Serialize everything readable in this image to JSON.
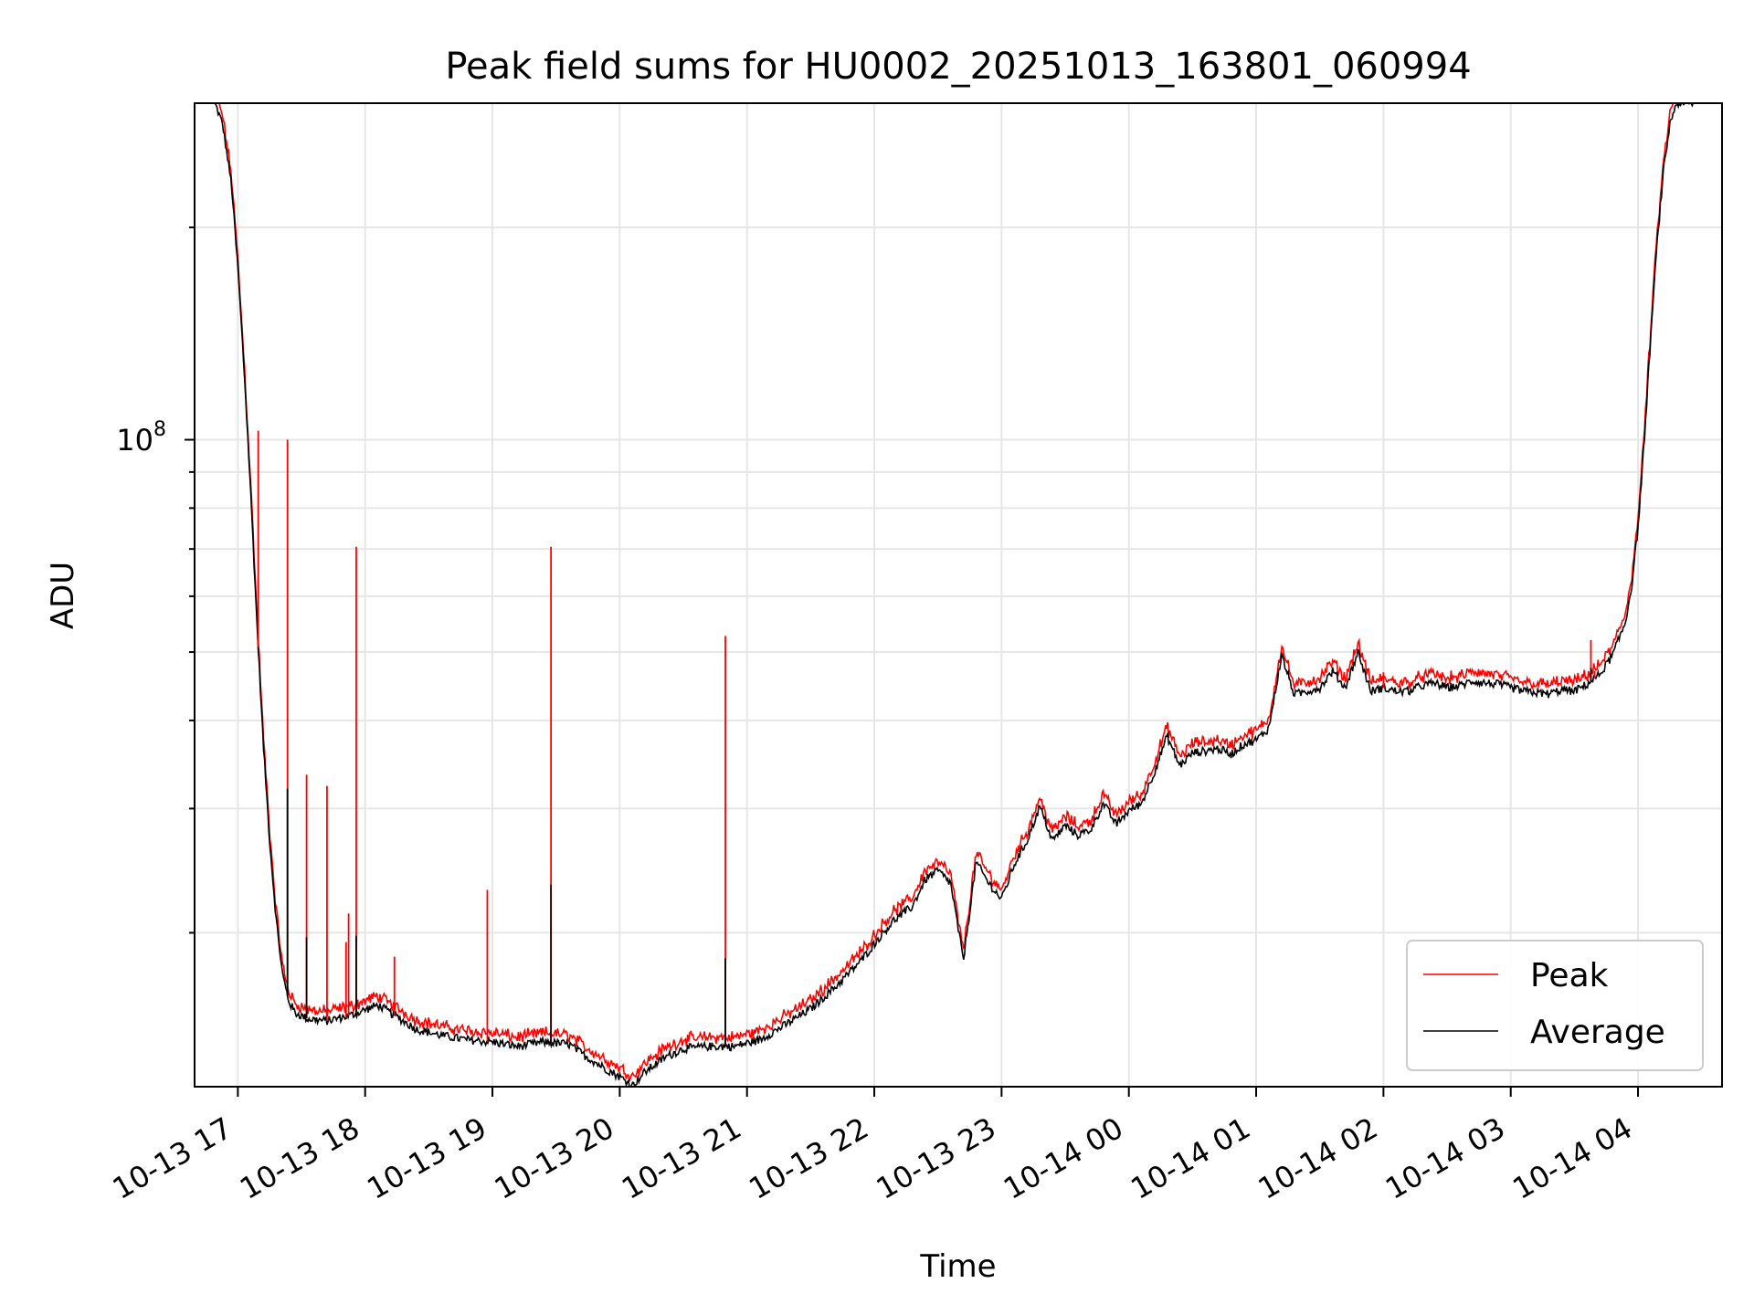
{
  "chart_data": {
    "type": "line",
    "title": "Peak field sums for HU0002_20251013_163801_060994",
    "xlabel": "Time",
    "ylabel": "ADU",
    "yscale": "log",
    "ylim": [
      12100000,
      300000000
    ],
    "xlim_hours": [
      16.66,
      28.66
    ],
    "x_ticks": [
      {
        "h": 17,
        "label": "10-13 17"
      },
      {
        "h": 18,
        "label": "10-13 18"
      },
      {
        "h": 19,
        "label": "10-13 19"
      },
      {
        "h": 20,
        "label": "10-13 20"
      },
      {
        "h": 21,
        "label": "10-13 21"
      },
      {
        "h": 22,
        "label": "10-13 22"
      },
      {
        "h": 23,
        "label": "10-13 23"
      },
      {
        "h": 24,
        "label": "10-14 00"
      },
      {
        "h": 25,
        "label": "10-14 01"
      },
      {
        "h": 26,
        "label": "10-14 02"
      },
      {
        "h": 27,
        "label": "10-14 03"
      },
      {
        "h": 28,
        "label": "10-14 04"
      }
    ],
    "y_major_tick": {
      "value": 100000000,
      "label": "10",
      "exp": "8"
    },
    "y_minor_ticks": [
      20000000,
      30000000,
      40000000,
      50000000,
      60000000,
      70000000,
      80000000,
      90000000,
      200000000
    ],
    "grid": true,
    "legend_position": "lower-right",
    "series": [
      {
        "name": "Average",
        "color": "#000000",
        "hours": [
          16.82,
          16.88,
          16.95,
          17.0,
          17.05,
          17.1,
          17.15,
          17.2,
          17.25,
          17.3,
          17.35,
          17.4,
          17.45,
          17.55,
          17.7,
          17.9,
          18.1,
          18.25,
          18.4,
          18.6,
          18.8,
          19.0,
          19.2,
          19.4,
          19.6,
          19.75,
          19.9,
          20.0,
          20.1,
          20.2,
          20.35,
          20.5,
          20.7,
          20.9,
          21.1,
          21.3,
          21.5,
          21.7,
          21.9,
          22.05,
          22.15,
          22.3,
          22.4,
          22.5,
          22.6,
          22.7,
          22.8,
          22.9,
          23.0,
          23.1,
          23.2,
          23.3,
          23.4,
          23.5,
          23.6,
          23.7,
          23.8,
          23.9,
          24.0,
          24.1,
          24.2,
          24.3,
          24.4,
          24.5,
          24.6,
          24.7,
          24.8,
          24.9,
          25.0,
          25.1,
          25.2,
          25.3,
          25.4,
          25.5,
          25.6,
          25.7,
          25.8,
          25.9,
          26.0,
          26.1,
          26.2,
          26.3,
          26.4,
          26.5,
          26.6,
          26.7,
          26.8,
          26.9,
          27.0,
          27.1,
          27.2,
          27.3,
          27.4,
          27.5,
          27.6,
          27.7,
          27.8,
          27.9,
          27.95,
          28.0,
          28.05,
          28.1,
          28.15,
          28.2,
          28.25,
          28.3,
          28.35,
          28.4,
          28.45
        ],
        "values": [
          300000000,
          280000000,
          230000000,
          175000000,
          125000000,
          85000000,
          55000000,
          37000000,
          27000000,
          21000000,
          17500000,
          16000000,
          15400000,
          15100000,
          15000000,
          15300000,
          15800000,
          15200000,
          14600000,
          14300000,
          14100000,
          14000000,
          13800000,
          14000000,
          13900000,
          13300000,
          12800000,
          12500000,
          12150000,
          12700000,
          13300000,
          13700000,
          13800000,
          13800000,
          14100000,
          14800000,
          15600000,
          16800000,
          18300000,
          19800000,
          20800000,
          21800000,
          23800000,
          24500000,
          23500000,
          18300000,
          25200000,
          23500000,
          22300000,
          25000000,
          27000000,
          30200000,
          27000000,
          28400000,
          27500000,
          28000000,
          30500000,
          28500000,
          29800000,
          30500000,
          33800000,
          38000000,
          34500000,
          36000000,
          36200000,
          36500000,
          35800000,
          37000000,
          37500000,
          39000000,
          49500000,
          43500000,
          44000000,
          44500000,
          47000000,
          44500000,
          50000000,
          44000000,
          44500000,
          44000000,
          44000000,
          44800000,
          45200000,
          44500000,
          44800000,
          45500000,
          45200000,
          45000000,
          44500000,
          44000000,
          43800000,
          43600000,
          44200000,
          44000000,
          45000000,
          46500000,
          49500000,
          55000000,
          62000000,
          75000000,
          100000000,
          140000000,
          190000000,
          240000000,
          280000000,
          300000000,
          300000000,
          300000000,
          300000000
        ]
      },
      {
        "name": "Peak",
        "color": "#ff0000",
        "spikes": [
          {
            "h": 17.16,
            "value": 103000000
          },
          {
            "h": 17.39,
            "value": 100000000
          },
          {
            "h": 17.54,
            "value": 33500000
          },
          {
            "h": 17.7,
            "value": 32300000
          },
          {
            "h": 17.85,
            "value": 19400000
          },
          {
            "h": 17.87,
            "value": 21300000
          },
          {
            "h": 17.93,
            "value": 70500000
          },
          {
            "h": 18.23,
            "value": 18500000
          },
          {
            "h": 18.96,
            "value": 23000000
          },
          {
            "h": 19.46,
            "value": 70500000
          },
          {
            "h": 20.83,
            "value": 52700000
          },
          {
            "h": 26.0,
            "value": 46800000
          },
          {
            "h": 27.63,
            "value": 52000000
          },
          {
            "h": 27.66,
            "value": 47000000
          }
        ]
      }
    ],
    "average_spikes": [
      {
        "h": 17.39,
        "value": 32000000
      },
      {
        "h": 17.54,
        "value": 19700000
      },
      {
        "h": 17.93,
        "value": 19800000
      },
      {
        "h": 19.46,
        "value": 23400000
      },
      {
        "h": 20.83,
        "value": 18400000
      },
      {
        "h": 27.63,
        "value": 47500000
      }
    ]
  }
}
